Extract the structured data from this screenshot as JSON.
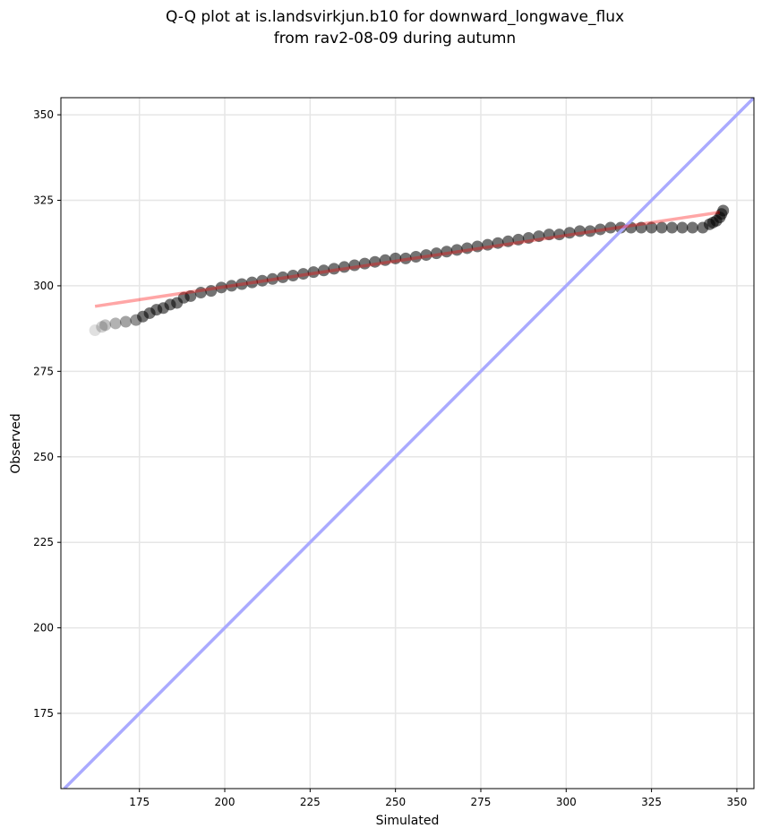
{
  "chart_data": {
    "type": "scatter",
    "title": "Q-Q plot at is.landsvirkjun.b10 for downward_longwave_flux",
    "subtitle": "from rav2-08-09 during autumn",
    "xlabel": "Simulated",
    "ylabel": "Observed",
    "xlim": [
      152,
      355
    ],
    "ylim": [
      153,
      355
    ],
    "xticks": [
      175,
      200,
      225,
      250,
      275,
      300,
      325,
      350
    ],
    "yticks": [
      175,
      200,
      225,
      250,
      275,
      300,
      325,
      350
    ],
    "grid": true,
    "colors": {
      "points": "#000000",
      "identity_line": "#aaaaff",
      "fit_line": "#ffaaaa"
    },
    "series": [
      {
        "type": "scatter",
        "quantiles": [
          [
            162,
            287
          ],
          [
            164,
            288
          ],
          [
            165,
            288.5
          ],
          [
            168,
            289
          ],
          [
            171,
            289.5
          ],
          [
            174,
            290
          ],
          [
            176,
            291
          ],
          [
            178,
            292
          ],
          [
            180,
            293
          ],
          [
            182,
            293.5
          ],
          [
            184,
            294.5
          ],
          [
            186,
            295
          ],
          [
            188,
            296.5
          ],
          [
            190,
            297
          ],
          [
            193,
            298
          ],
          [
            196,
            298.5
          ],
          [
            199,
            299.5
          ],
          [
            202,
            300
          ],
          [
            205,
            300.5
          ],
          [
            208,
            301
          ],
          [
            211,
            301.5
          ],
          [
            214,
            302
          ],
          [
            217,
            302.5
          ],
          [
            220,
            303
          ],
          [
            223,
            303.5
          ],
          [
            226,
            304
          ],
          [
            229,
            304.5
          ],
          [
            232,
            305
          ],
          [
            235,
            305.5
          ],
          [
            238,
            306
          ],
          [
            241,
            306.5
          ],
          [
            244,
            307
          ],
          [
            247,
            307.5
          ],
          [
            250,
            308
          ],
          [
            253,
            308
          ],
          [
            256,
            308.5
          ],
          [
            259,
            309
          ],
          [
            262,
            309.5
          ],
          [
            265,
            310
          ],
          [
            268,
            310.5
          ],
          [
            271,
            311
          ],
          [
            274,
            311.5
          ],
          [
            277,
            312
          ],
          [
            280,
            312.5
          ],
          [
            283,
            313
          ],
          [
            286,
            313.5
          ],
          [
            289,
            314
          ],
          [
            292,
            314.5
          ],
          [
            295,
            315
          ],
          [
            298,
            315
          ],
          [
            301,
            315.5
          ],
          [
            304,
            316
          ],
          [
            307,
            316
          ],
          [
            310,
            316.5
          ],
          [
            313,
            317
          ],
          [
            316,
            317
          ],
          [
            319,
            317
          ],
          [
            322,
            317
          ],
          [
            325,
            317
          ],
          [
            328,
            317
          ],
          [
            331,
            317
          ],
          [
            334,
            317
          ],
          [
            337,
            317
          ],
          [
            340,
            317
          ],
          [
            342,
            318
          ],
          [
            343,
            318.5
          ],
          [
            344,
            319
          ],
          [
            345,
            320
          ],
          [
            345.5,
            321
          ],
          [
            346,
            322
          ]
        ]
      },
      {
        "type": "line",
        "x": [
          153,
          355
        ],
        "y": [
          153,
          355
        ]
      },
      {
        "type": "line",
        "x": [
          162,
          345
        ],
        "y": [
          294,
          321.5
        ]
      }
    ]
  }
}
